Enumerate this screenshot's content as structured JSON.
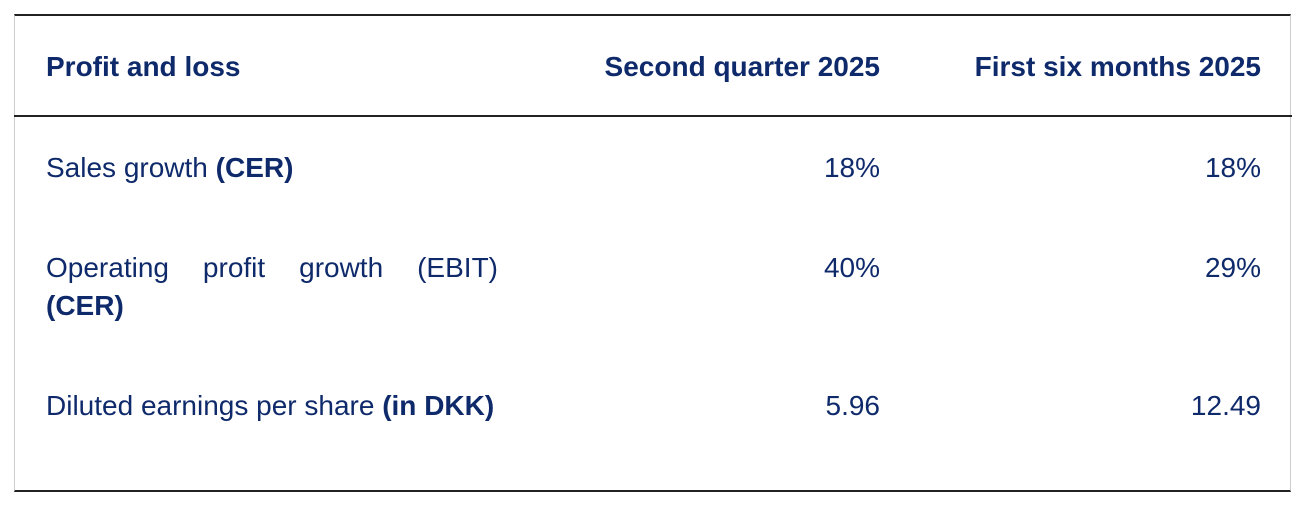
{
  "table": {
    "header": [
      "Profit and loss",
      "Second quarter 2025",
      "First six months 2025"
    ],
    "rows": [
      {
        "label": "Sales growth",
        "label_bold": "(CER)",
        "values": [
          "18%",
          "18%"
        ]
      },
      {
        "label": "Operating profit growth (EBIT)",
        "label_bold": "(CER)",
        "values": [
          "40%",
          "29%"
        ]
      },
      {
        "label": "Diluted earnings per share",
        "label_bold": "(in DKK)",
        "values": [
          "5.96",
          "12.49"
        ]
      }
    ]
  }
}
